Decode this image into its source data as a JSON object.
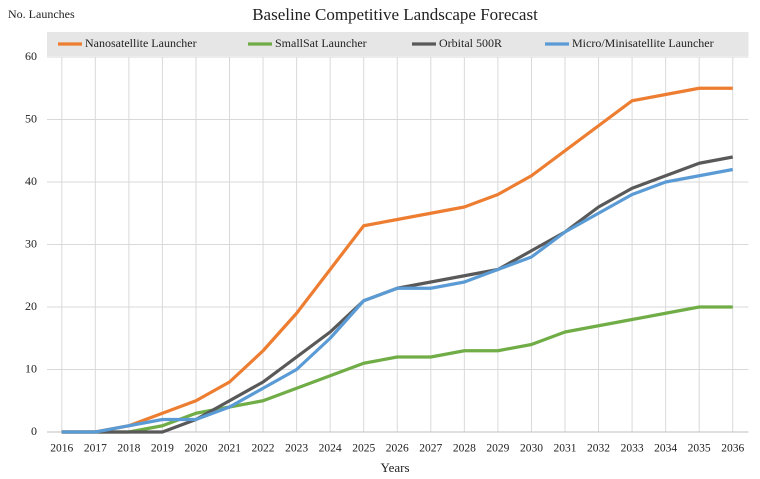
{
  "chart_data": {
    "type": "line",
    "title": "Baseline Competitive Landscape Forecast",
    "y_label": "No. Launches",
    "x_label": "Years",
    "categories": [
      "2016",
      "2017",
      "2018",
      "2019",
      "2020",
      "2021",
      "2022",
      "2023",
      "2024",
      "2025",
      "2026",
      "2027",
      "2028",
      "2029",
      "2030",
      "2031",
      "2032",
      "2033",
      "2034",
      "2035",
      "2036"
    ],
    "series": [
      {
        "name": "Nanosatellite Launcher",
        "color": "#ed7d31",
        "values": [
          0,
          0,
          1,
          3,
          5,
          8,
          13,
          19,
          26,
          33,
          34,
          35,
          36,
          38,
          41,
          45,
          49,
          53,
          54,
          55,
          55
        ]
      },
      {
        "name": "SmallSat Launcher",
        "color": "#70ad47",
        "values": [
          0,
          0,
          0,
          1,
          3,
          4,
          5,
          7,
          9,
          11,
          12,
          12,
          13,
          13,
          14,
          16,
          17,
          18,
          19,
          20,
          20
        ]
      },
      {
        "name": "Orbital 500R",
        "color": "#595959",
        "values": [
          0,
          0,
          0,
          0,
          2,
          5,
          8,
          12,
          16,
          21,
          23,
          24,
          25,
          26,
          29,
          32,
          36,
          39,
          41,
          43,
          44
        ]
      },
      {
        "name": "Micro/Minisatellite Launcher",
        "color": "#5b9bd5",
        "values": [
          0,
          0,
          1,
          2,
          2,
          4,
          7,
          10,
          15,
          21,
          23,
          23,
          24,
          26,
          28,
          32,
          35,
          38,
          40,
          41,
          42
        ]
      }
    ],
    "ylim": [
      0,
      60
    ],
    "yticks": [
      0,
      10,
      20,
      30,
      40,
      50,
      60
    ],
    "grid": true,
    "legend": "top"
  }
}
